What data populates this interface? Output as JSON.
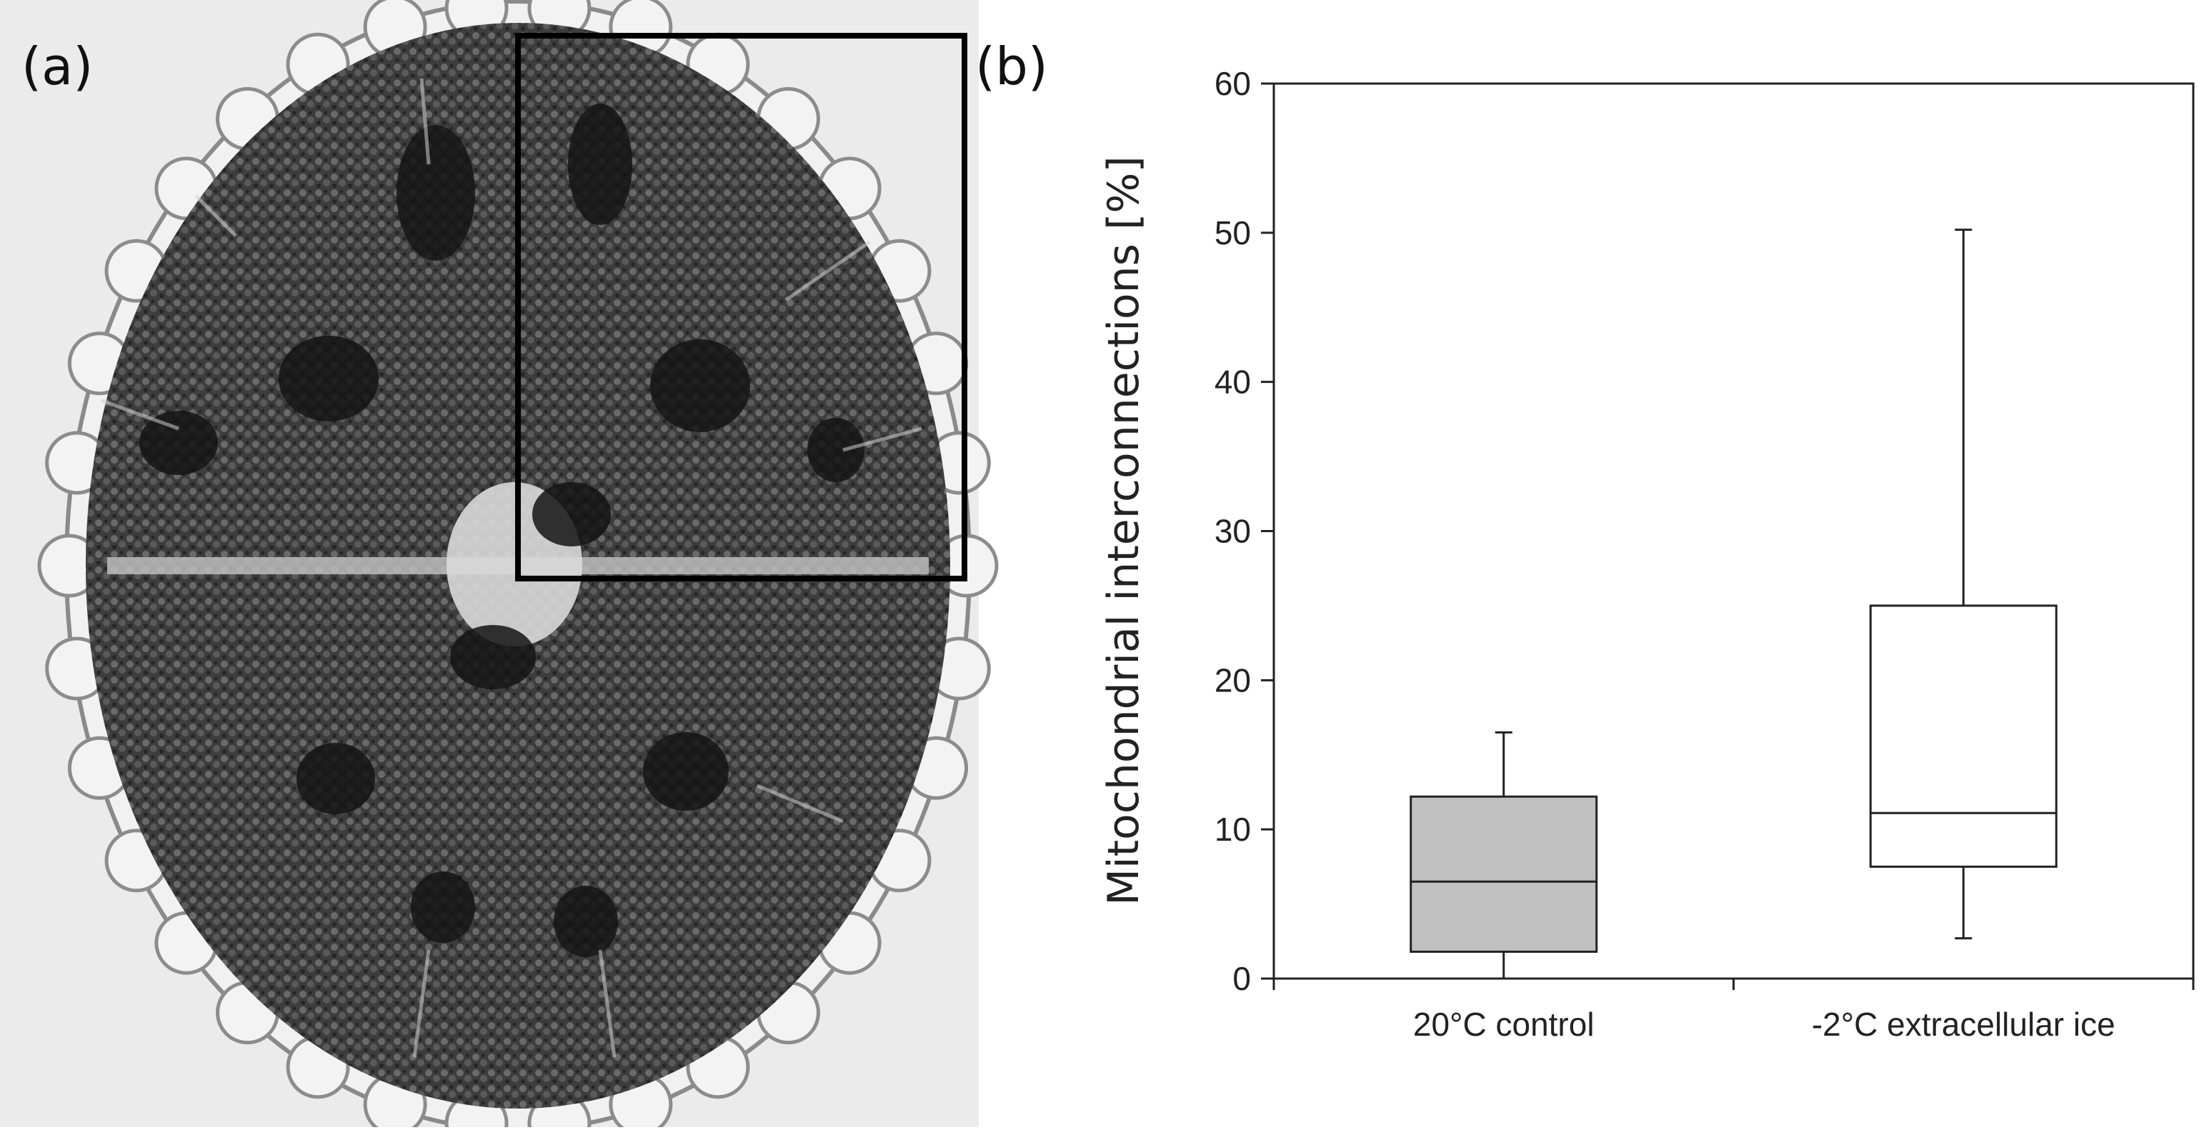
{
  "figure": {
    "panel_a_label": "(a)",
    "panel_b_label": "(b)"
  },
  "micrograph": {
    "subject": "desmid-cell-micrograph",
    "colors": {
      "background": "#e9e9e9",
      "cytoplasm": "#3b3b3b",
      "cell_wall": "#f2f2f2",
      "dark_bands": "#151515",
      "box": "#000000"
    }
  },
  "chart_data": {
    "type": "box",
    "ylabel": "Mitochondrial interconnections [%]",
    "xlabel": "",
    "ylim": [
      0,
      60
    ],
    "yticks": [
      0,
      10,
      20,
      30,
      40,
      50,
      60
    ],
    "categories": [
      "20°C control",
      "-2°C extracellular ice"
    ],
    "boxes": [
      {
        "category": "20°C control",
        "whisker_low": 0,
        "q1": 1.8,
        "median": 6.5,
        "q3": 12.2,
        "whisker_high": 16.5,
        "fill": "#c0c0c0"
      },
      {
        "category": "-2°C extracellular ice",
        "whisker_low": 2.7,
        "q1": 7.5,
        "median": 11.1,
        "q3": 25.0,
        "whisker_high": 50.2,
        "fill": "#ffffff"
      }
    ],
    "grid": false,
    "frame": "full"
  }
}
